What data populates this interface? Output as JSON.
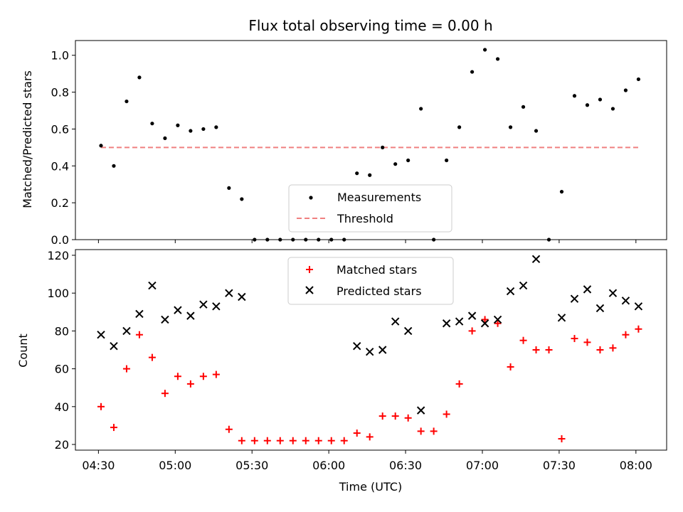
{
  "chart_data": [
    {
      "type": "scatter",
      "title": "Flux total observing time = 0.00 h",
      "xlabel": "",
      "ylabel": "Matched/Predicted stars",
      "ylim": [
        0,
        1.08
      ],
      "yticks": [
        "0.0",
        "0.2",
        "0.4",
        "0.6",
        "0.8",
        "1.0"
      ],
      "xlim": [
        "04:21",
        "08:12"
      ],
      "legend": {
        "placement": "lower-center",
        "entries": [
          "Measurements",
          "Threshold"
        ]
      },
      "series": [
        {
          "name": "Measurements",
          "marker": "dot",
          "color": "#000000",
          "x": [
            "04:31",
            "04:36",
            "04:41",
            "04:46",
            "04:51",
            "04:56",
            "05:01",
            "05:06",
            "05:11",
            "05:16",
            "05:21",
            "05:26",
            "05:31",
            "05:36",
            "05:41",
            "05:46",
            "05:51",
            "05:56",
            "06:01",
            "06:06",
            "06:11",
            "06:16",
            "06:21",
            "06:26",
            "06:31",
            "06:36",
            "06:41",
            "06:46",
            "06:51",
            "06:56",
            "07:01",
            "07:06",
            "07:11",
            "07:16",
            "07:21",
            "07:26",
            "07:31",
            "07:36",
            "07:41",
            "07:46",
            "07:51",
            "07:56",
            "08:01"
          ],
          "y": [
            0.51,
            0.4,
            0.75,
            0.88,
            0.63,
            0.55,
            0.62,
            0.59,
            0.6,
            0.61,
            0.28,
            0.22,
            0.0,
            0.0,
            0.0,
            0.0,
            0.0,
            0.0,
            0.0,
            0.0,
            0.36,
            0.35,
            0.5,
            0.41,
            0.43,
            0.71,
            0.0,
            0.43,
            0.61,
            0.91,
            1.03,
            0.98,
            0.61,
            0.72,
            0.59,
            0.0,
            0.26,
            0.78,
            0.73,
            0.76,
            0.71,
            0.81,
            0.87
          ]
        },
        {
          "name": "Threshold",
          "marker": "dashed-line",
          "color": "#f08080",
          "x": [
            "04:31",
            "08:01"
          ],
          "y": [
            0.5,
            0.5
          ]
        }
      ]
    },
    {
      "type": "scatter",
      "title": "",
      "xlabel": "Time (UTC)",
      "ylabel": "Count",
      "ylim": [
        17,
        123
      ],
      "yticks": [
        "20",
        "40",
        "60",
        "80",
        "100",
        "120"
      ],
      "xlim": [
        "04:21",
        "08:12"
      ],
      "xticks": [
        "04:30",
        "05:00",
        "05:30",
        "06:00",
        "06:30",
        "07:00",
        "07:30",
        "08:00"
      ],
      "legend": {
        "placement": "upper-center",
        "entries": [
          "Matched stars",
          "Predicted stars"
        ]
      },
      "series": [
        {
          "name": "Matched stars",
          "marker": "plus",
          "color": "#ff0000",
          "x": [
            "04:31",
            "04:36",
            "04:41",
            "04:46",
            "04:51",
            "04:56",
            "05:01",
            "05:06",
            "05:11",
            "05:16",
            "05:21",
            "05:26",
            "05:31",
            "05:36",
            "05:41",
            "05:46",
            "05:51",
            "05:56",
            "06:01",
            "06:06",
            "06:11",
            "06:16",
            "06:21",
            "06:26",
            "06:31",
            "06:36",
            "06:41",
            "06:46",
            "06:51",
            "06:56",
            "07:01",
            "07:06",
            "07:11",
            "07:16",
            "07:21",
            "07:26",
            "07:31",
            "07:36",
            "07:41",
            "07:46",
            "07:51",
            "07:56",
            "08:01"
          ],
          "y": [
            40,
            29,
            60,
            78,
            66,
            47,
            56,
            52,
            56,
            57,
            28,
            22,
            22,
            22,
            22,
            22,
            22,
            22,
            22,
            22,
            26,
            24,
            35,
            35,
            34,
            27,
            27,
            36,
            52,
            80,
            86,
            84,
            61,
            75,
            70,
            70,
            23,
            76,
            74,
            70,
            71,
            78,
            81
          ]
        },
        {
          "name": "Predicted stars",
          "marker": "x",
          "color": "#000000",
          "x": [
            "04:31",
            "04:36",
            "04:41",
            "04:46",
            "04:51",
            "04:56",
            "05:01",
            "05:06",
            "05:11",
            "05:16",
            "05:21",
            "05:26",
            "06:11",
            "06:16",
            "06:21",
            "06:26",
            "06:31",
            "06:36",
            "06:46",
            "06:51",
            "06:56",
            "07:01",
            "07:06",
            "07:11",
            "07:16",
            "07:21",
            "07:31",
            "07:36",
            "07:41",
            "07:46",
            "07:51",
            "07:56",
            "08:01"
          ],
          "y": [
            78,
            72,
            80,
            89,
            104,
            86,
            91,
            88,
            94,
            93,
            100,
            98,
            72,
            69,
            70,
            85,
            80,
            38,
            84,
            85,
            88,
            84,
            86,
            101,
            104,
            118,
            87,
            97,
            102,
            92,
            100,
            96,
            93
          ]
        }
      ]
    }
  ]
}
